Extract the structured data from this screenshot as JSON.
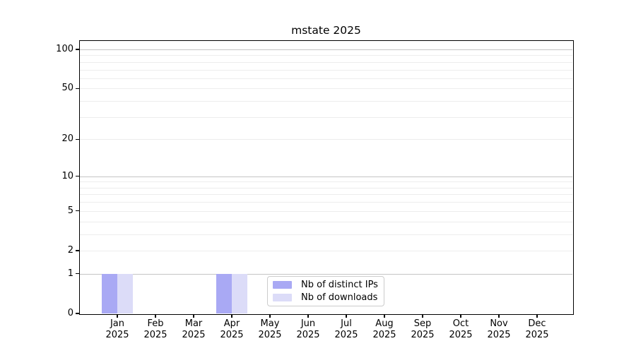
{
  "window": {
    "background": "#ffffff"
  },
  "chart_data": {
    "type": "bar",
    "title": "mstate 2025",
    "xlabel": "",
    "ylabel": "",
    "yscale": "log1p",
    "ylim": [
      0,
      116
    ],
    "grid": true,
    "categories": [
      "Jan",
      "Feb",
      "Mar",
      "Apr",
      "May",
      "Jun",
      "Jul",
      "Aug",
      "Sep",
      "Oct",
      "Nov",
      "Dec"
    ],
    "category_year": "2025",
    "ytick_values": [
      0,
      1,
      2,
      5,
      10,
      20,
      50,
      100
    ],
    "ytick_labels": [
      "0",
      "1",
      "2",
      "5",
      "10",
      "20",
      "50",
      "100"
    ],
    "major_grid_values": [
      1,
      10,
      100
    ],
    "minor_grid_values": [
      2,
      3,
      4,
      5,
      6,
      7,
      8,
      9,
      20,
      30,
      40,
      50,
      60,
      70,
      80,
      90
    ],
    "series": [
      {
        "name": "Nb of distinct IPs",
        "color": "#a9a9f4",
        "values": [
          1,
          0,
          0,
          1,
          0,
          0,
          0,
          0,
          0,
          0,
          0,
          0
        ]
      },
      {
        "name": "Nb of downloads",
        "color": "#dcdcf8",
        "values": [
          1,
          0,
          0,
          1,
          0,
          0,
          0,
          0,
          0,
          0,
          0,
          0
        ]
      }
    ],
    "legend": {
      "position": "lower center"
    }
  },
  "colors": {
    "major_grid": "#c5c5c5",
    "minor_grid": "#ededed",
    "axis": "#000000",
    "legend_border": "#cccccc"
  }
}
